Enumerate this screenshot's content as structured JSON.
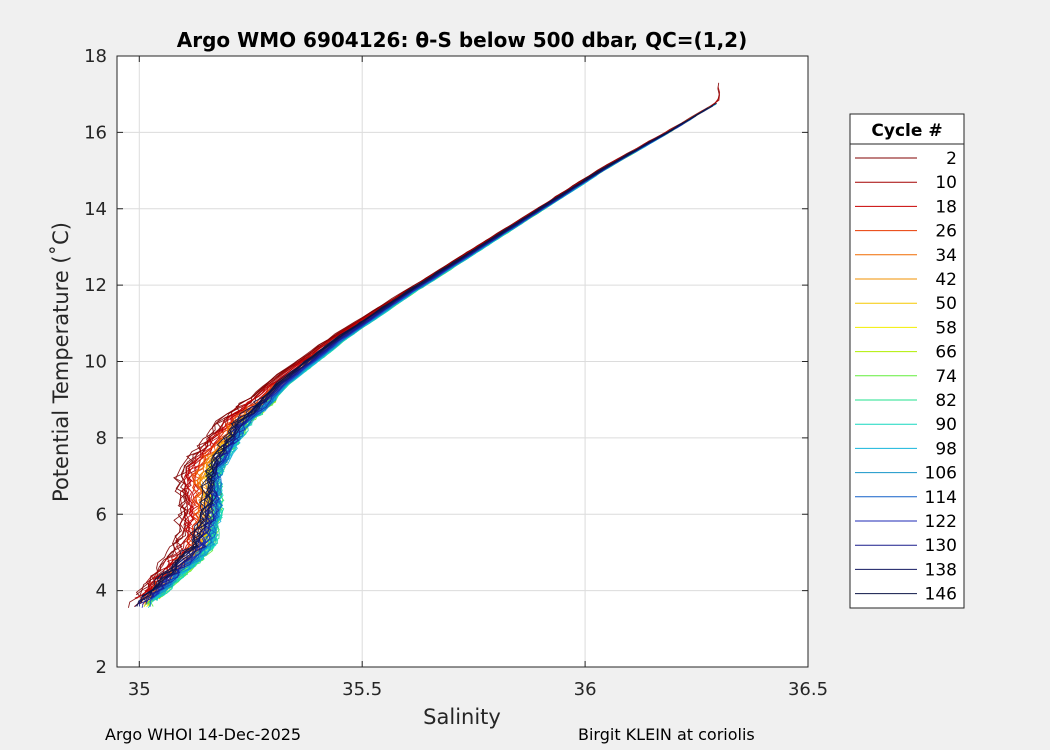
{
  "chart_data": {
    "type": "line",
    "title": "Argo WMO 6904126: θ-S below 500 dbar,  QC=(1,2)",
    "xlabel": "Salinity",
    "ylabel": "Potential Temperature (˚C)",
    "xlim": [
      34.95,
      36.5
    ],
    "ylim": [
      2,
      18
    ],
    "xticks": [
      35,
      35.5,
      36,
      36.5
    ],
    "xtick_labels": [
      "35",
      "35.5",
      "36",
      "36.5"
    ],
    "yticks": [
      2,
      4,
      6,
      8,
      10,
      12,
      14,
      16,
      18
    ],
    "ytick_labels": [
      "2",
      "4",
      "6",
      "8",
      "10",
      "12",
      "14",
      "16",
      "18"
    ],
    "grid": true,
    "legend_position": "right",
    "legend_title": "Cycle #",
    "series": [
      {
        "name": "2",
        "color": "#800000"
      },
      {
        "name": "10",
        "color": "#a30000"
      },
      {
        "name": "18",
        "color": "#c80000"
      },
      {
        "name": "26",
        "color": "#e83a00"
      },
      {
        "name": "34",
        "color": "#f06a00"
      },
      {
        "name": "42",
        "color": "#f29000"
      },
      {
        "name": "50",
        "color": "#f5c800"
      },
      {
        "name": "58",
        "color": "#f2ee00"
      },
      {
        "name": "66",
        "color": "#b0ee00"
      },
      {
        "name": "74",
        "color": "#62ee3c"
      },
      {
        "name": "82",
        "color": "#22e08c"
      },
      {
        "name": "90",
        "color": "#16d7bf"
      },
      {
        "name": "98",
        "color": "#14b4dc"
      },
      {
        "name": "106",
        "color": "#1494c8"
      },
      {
        "name": "114",
        "color": "#1460c8"
      },
      {
        "name": "122",
        "color": "#1c2ab4"
      },
      {
        "name": "130",
        "color": "#181c8c"
      },
      {
        "name": "138",
        "color": "#121860"
      },
      {
        "name": "146",
        "color": "#0c1446"
      }
    ],
    "envelope": {
      "base_curve": [
        [
          35.0,
          3.6
        ],
        [
          35.06,
          4.3
        ],
        [
          35.14,
          5.2
        ],
        [
          35.18,
          6.2
        ],
        [
          35.2,
          7.3
        ],
        [
          35.24,
          8.4
        ],
        [
          35.32,
          9.4
        ],
        [
          35.45,
          10.6
        ],
        [
          35.6,
          11.8
        ],
        [
          35.75,
          12.9
        ],
        [
          35.9,
          14.0
        ],
        [
          36.05,
          15.1
        ],
        [
          36.2,
          16.1
        ],
        [
          36.3,
          16.8
        ]
      ],
      "salinity_offset_by_cycle_at_temperature": [
        [
          3.5,
          -0.02,
          0.03
        ],
        [
          5.0,
          -0.06,
          0.06
        ],
        [
          7.0,
          -0.12,
          0.04
        ],
        [
          9.0,
          -0.05,
          0.04
        ],
        [
          12.0,
          -0.01,
          0.02
        ],
        [
          15.0,
          -0.01,
          0.01
        ],
        [
          17.0,
          0.0,
          0.0
        ]
      ]
    }
  },
  "footer": {
    "left": "Argo WHOI 14-Dec-2025",
    "right": "Birgit KLEIN at coriolis"
  }
}
